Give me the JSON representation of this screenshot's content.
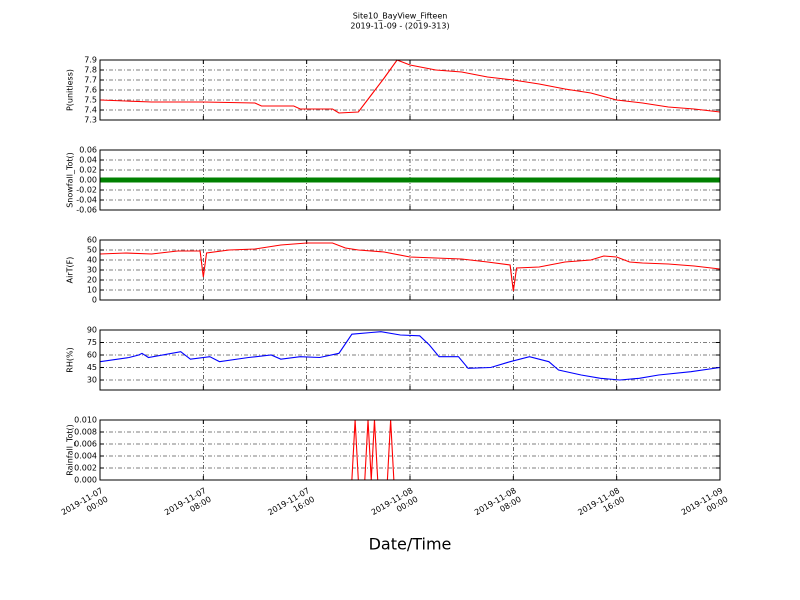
{
  "chart_data": [
    {
      "type": "line",
      "title": "Site10_BayView_Fifteen",
      "subtitle": "2019-11-09 - (2019-313)",
      "ylabel": "P(unitless)",
      "color": "#ff0000",
      "grid": true,
      "ylim": [
        7.3,
        7.9
      ],
      "yticks": [
        7.3,
        7.4,
        7.5,
        7.6,
        7.7,
        7.8,
        7.9
      ],
      "x": [
        "2019-11-07 00:00",
        "2019-11-07 02:00",
        "2019-11-07 04:00",
        "2019-11-07 08:00",
        "2019-11-07 12:00",
        "2019-11-07 12:30",
        "2019-11-07 15:00",
        "2019-11-07 15:30",
        "2019-11-07 18:00",
        "2019-11-07 18:30",
        "2019-11-07 20:00",
        "2019-11-07 21:00",
        "2019-11-07 22:00",
        "2019-11-07 23:00",
        "2019-11-08 00:00",
        "2019-11-08 02:00",
        "2019-11-08 04:00",
        "2019-11-08 06:00",
        "2019-11-08 08:00",
        "2019-11-08 10:00",
        "2019-11-08 12:00",
        "2019-11-08 14:00",
        "2019-11-08 16:00",
        "2019-11-08 18:00",
        "2019-11-08 20:00",
        "2019-11-08 22:00",
        "2019-11-09 00:00"
      ],
      "values": [
        7.5,
        7.49,
        7.48,
        7.48,
        7.47,
        7.44,
        7.44,
        7.41,
        7.41,
        7.37,
        7.38,
        7.55,
        7.72,
        7.9,
        7.85,
        7.8,
        7.78,
        7.73,
        7.7,
        7.66,
        7.61,
        7.57,
        7.5,
        7.47,
        7.43,
        7.41,
        7.38
      ]
    },
    {
      "type": "line",
      "ylabel": "Snowfall_Tot()",
      "color": "#008000",
      "marker": "o",
      "grid": true,
      "ylim": [
        -0.06,
        0.06
      ],
      "yticks": [
        -0.06,
        -0.04,
        -0.02,
        {
          "value": 0,
          "label": "0.00"
        },
        0.02,
        0.04,
        0.06
      ],
      "x": [
        "2019-11-07 00:00",
        "2019-11-09 00:00"
      ],
      "values": [
        0,
        0
      ]
    },
    {
      "type": "line",
      "ylabel": "AirT(F)",
      "color": "#ff0000",
      "grid": true,
      "ylim": [
        0,
        60
      ],
      "yticks": [
        0,
        10,
        20,
        30,
        40,
        50,
        60
      ],
      "x": [
        "2019-11-07 00:00",
        "2019-11-07 02:00",
        "2019-11-07 04:00",
        "2019-11-07 06:00",
        "2019-11-07 07:45",
        "2019-11-07 08:00",
        "2019-11-07 08:15",
        "2019-11-07 10:00",
        "2019-11-07 12:00",
        "2019-11-07 14:00",
        "2019-11-07 16:00",
        "2019-11-07 18:00",
        "2019-11-07 19:00",
        "2019-11-07 20:00",
        "2019-11-07 22:00",
        "2019-11-08 00:00",
        "2019-11-08 02:00",
        "2019-11-08 04:00",
        "2019-11-08 06:00",
        "2019-11-08 07:45",
        "2019-11-08 08:00",
        "2019-11-08 08:15",
        "2019-11-08 10:00",
        "2019-11-08 12:00",
        "2019-11-08 14:00",
        "2019-11-08 15:00",
        "2019-11-08 16:00",
        "2019-11-08 17:00",
        "2019-11-08 18:00",
        "2019-11-08 20:00",
        "2019-11-08 22:00",
        "2019-11-09 00:00"
      ],
      "values": [
        46,
        47,
        46,
        49,
        49,
        23,
        47,
        50,
        51,
        55,
        57,
        57,
        52,
        50,
        48,
        43,
        42,
        41,
        38,
        35,
        9,
        32,
        33,
        38,
        40,
        44,
        43,
        38,
        37,
        36,
        34,
        31
      ]
    },
    {
      "type": "line",
      "ylabel": "RH(%)",
      "color": "#0000ff",
      "grid": true,
      "ylim": [
        18,
        90
      ],
      "yticks": [
        30,
        45,
        60,
        75,
        90
      ],
      "x": [
        "2019-11-07 00:00",
        "2019-11-07 02:15",
        "2019-11-07 03:00",
        "2019-11-07 03:15",
        "2019-11-07 03:45",
        "2019-11-07 06:15",
        "2019-11-07 07:00",
        "2019-11-07 08:30",
        "2019-11-07 09:15",
        "2019-11-07 11:30",
        "2019-11-07 13:15",
        "2019-11-07 14:00",
        "2019-11-07 15:30",
        "2019-11-07 17:00",
        "2019-11-07 18:30",
        "2019-11-07 19:30",
        "2019-11-07 21:00",
        "2019-11-07 21:45",
        "2019-11-07 23:15",
        "2019-11-08 00:45",
        "2019-11-08 01:30",
        "2019-11-08 02:15",
        "2019-11-08 03:45",
        "2019-11-08 04:30",
        "2019-11-08 06:15",
        "2019-11-08 07:45",
        "2019-11-08 09:15",
        "2019-11-08 10:45",
        "2019-11-08 11:30",
        "2019-11-08 13:15",
        "2019-11-08 14:45",
        "2019-11-08 16:15",
        "2019-11-08 17:45",
        "2019-11-08 19:15",
        "2019-11-08 21:45",
        "2019-11-09 00:00"
      ],
      "values": [
        52,
        57,
        60,
        62,
        57,
        64,
        55,
        58,
        52,
        57,
        60,
        55,
        58,
        57,
        62,
        85,
        87,
        88,
        84,
        83,
        72,
        58,
        58,
        44,
        45,
        52,
        58,
        52,
        42,
        36,
        32,
        30,
        32,
        36,
        40,
        45
      ]
    },
    {
      "type": "line",
      "ylabel": "Rainfall_Tot()",
      "color": "#ff0000",
      "grid": true,
      "xlabel": "Date/Time",
      "ylim": [
        0,
        0.01
      ],
      "yticks": [
        {
          "value": 0,
          "label": "0.000"
        },
        0.002,
        0.004,
        0.006,
        0.008,
        {
          "value": 0.01,
          "label": "0.010"
        }
      ],
      "xlim": [
        "2019-11-07 00:00",
        "2019-11-09 00:00"
      ],
      "xticks": [
        {
          "value": "2019-11-07 00:00",
          "label": "2019-11-07\n00:00"
        },
        {
          "value": "2019-11-07 08:00",
          "label": "2019-11-07\n08:00"
        },
        {
          "value": "2019-11-07 16:00",
          "label": "2019-11-07\n16:00"
        },
        {
          "value": "2019-11-08 00:00",
          "label": "2019-11-08\n00:00"
        },
        {
          "value": "2019-11-08 08:00",
          "label": "2019-11-08\n08:00"
        },
        {
          "value": "2019-11-08 16:00",
          "label": "2019-11-08\n16:00"
        },
        {
          "value": "2019-11-09 00:00",
          "label": "2019-11-09\n00:00"
        }
      ],
      "x": [
        "2019-11-07 00:00",
        "2019-11-07 19:30",
        "2019-11-07 19:45",
        "2019-11-07 20:00",
        "2019-11-07 20:30",
        "2019-11-07 20:45",
        "2019-11-07 21:00",
        "2019-11-07 21:15",
        "2019-11-07 21:30",
        "2019-11-07 22:15",
        "2019-11-07 22:30",
        "2019-11-07 22:45",
        "2019-11-09 00:00"
      ],
      "values": [
        0,
        0,
        0.01,
        0,
        0,
        0.01,
        0,
        0.01,
        0,
        0,
        0.01,
        0,
        0
      ]
    }
  ]
}
